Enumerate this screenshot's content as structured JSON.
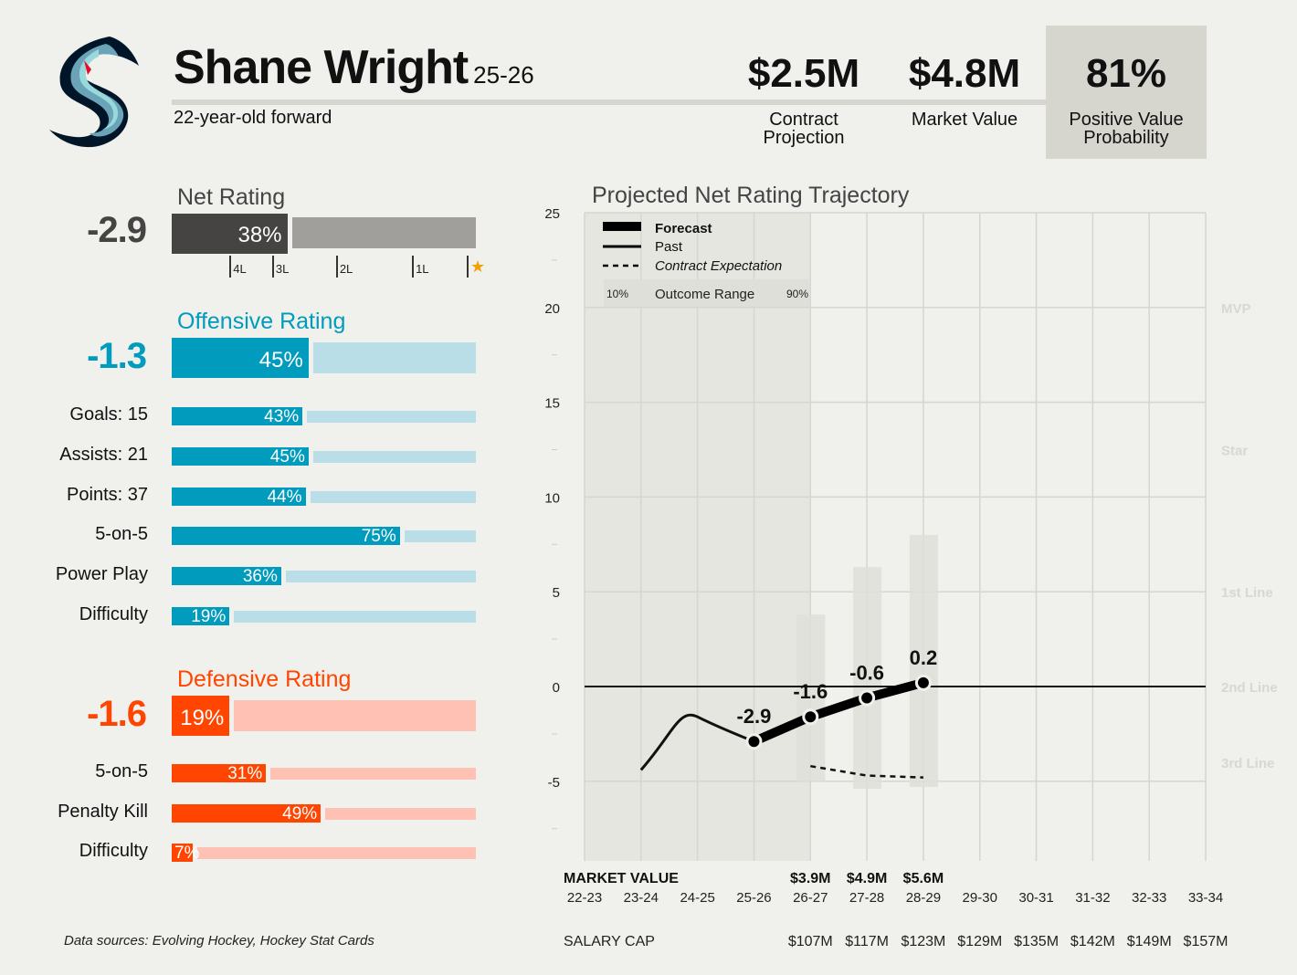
{
  "header": {
    "player_name": "Shane Wright",
    "season": "25-26",
    "subtitle": "22-year-old forward",
    "team_logo": "seattle-kraken-logo"
  },
  "summary_stats": [
    {
      "value": "$2.5M",
      "label_line1": "Contract",
      "label_line2": "Projection"
    },
    {
      "value": "$4.8M",
      "label_line1": "Market Value",
      "label_line2": ""
    },
    {
      "value": "81%",
      "label_line1": "Positive Value",
      "label_line2": "Probability"
    }
  ],
  "net_rating": {
    "title": "Net Rating",
    "value": "-2.9",
    "percentile": 38,
    "percentile_label": "38%",
    "color": "#454442",
    "track_color": "#a09f9c",
    "markers": [
      {
        "label": "4L",
        "percentile": 19
      },
      {
        "label": "3L",
        "percentile": 33
      },
      {
        "label": "2L",
        "percentile": 54
      },
      {
        "label": "1L",
        "percentile": 79
      },
      {
        "label": "★",
        "percentile": 97
      }
    ]
  },
  "offensive": {
    "title": "Offensive Rating",
    "value": "-1.3",
    "percentile": 45,
    "percentile_label": "45%",
    "color": "#009bbd",
    "track_color": "#badee7",
    "rows": [
      {
        "label": "Goals: 15",
        "percentile": 43,
        "percentile_label": "43%"
      },
      {
        "label": "Assists: 21",
        "percentile": 45,
        "percentile_label": "45%"
      },
      {
        "label": "Points: 37",
        "percentile": 44,
        "percentile_label": "44%"
      },
      {
        "label": "5-on-5",
        "percentile": 75,
        "percentile_label": "75%"
      },
      {
        "label": "Power Play",
        "percentile": 36,
        "percentile_label": "36%"
      },
      {
        "label": "Difficulty",
        "percentile": 19,
        "percentile_label": "19%"
      }
    ]
  },
  "defensive": {
    "title": "Defensive Rating",
    "value": "-1.6",
    "percentile": 19,
    "percentile_label": "19%",
    "color": "#ff4500",
    "track_color": "#ffc1b4",
    "rows": [
      {
        "label": "5-on-5",
        "percentile": 31,
        "percentile_label": "31%"
      },
      {
        "label": "Penalty Kill",
        "percentile": 49,
        "percentile_label": "49%"
      },
      {
        "label": "Difficulty",
        "percentile": 7,
        "percentile_label": "7%"
      }
    ]
  },
  "footnote": "Data sources: Evolving Hockey, Hockey Stat Cards",
  "chart_data": {
    "type": "line",
    "title": "Projected Net Rating Trajectory",
    "x": [
      "22-23",
      "23-24",
      "24-25",
      "25-26",
      "26-27",
      "27-28",
      "28-29",
      "29-30",
      "30-31",
      "31-32",
      "32-33",
      "33-34"
    ],
    "ylim": [
      -9.2,
      25
    ],
    "yticks": [
      25,
      20,
      15,
      10,
      5,
      0,
      -5
    ],
    "grid": true,
    "legend_position": "top-left",
    "legend": {
      "forecast": "Forecast",
      "past": "Past",
      "contract": "Contract Expectation",
      "range_low": "10%",
      "range_label": "Outcome Range",
      "range_high": "90%"
    },
    "series": [
      {
        "name": "Past",
        "x": [
          "23-24",
          "24-25",
          "25-26"
        ],
        "values": [
          -4.4,
          -1.6,
          -2.9
        ],
        "smooth": true
      },
      {
        "name": "Forecast",
        "x": [
          "25-26",
          "26-27",
          "27-28",
          "28-29"
        ],
        "values": [
          -2.9,
          -1.6,
          -0.6,
          0.2
        ],
        "labels": [
          "-2.9",
          "-1.6",
          "-0.6",
          "0.2"
        ]
      },
      {
        "name": "Contract Expectation",
        "x": [
          "26-27",
          "27-28",
          "28-29"
        ],
        "values": [
          -4.2,
          -4.7,
          -4.8
        ]
      }
    ],
    "outcome_range": [
      {
        "x": "26-27",
        "low": -5.0,
        "high": 3.8
      },
      {
        "x": "27-28",
        "low": -5.4,
        "high": 6.3
      },
      {
        "x": "28-29",
        "low": -5.3,
        "high": 8.0
      }
    ],
    "past_region": [
      "22-23",
      "26-27"
    ],
    "tier_labels": [
      {
        "label": "MVP",
        "y": 20
      },
      {
        "label": "Star",
        "y": 12.5
      },
      {
        "label": "1st Line",
        "y": 5
      },
      {
        "label": "2nd Line",
        "y": 0
      },
      {
        "label": "3rd Line",
        "y": -4
      }
    ],
    "market_value_label": "MARKET VALUE",
    "market_values": [
      {
        "x": "26-27",
        "label": "$3.9M"
      },
      {
        "x": "27-28",
        "label": "$4.9M"
      },
      {
        "x": "28-29",
        "label": "$5.6M"
      }
    ],
    "salary_cap_label": "SALARY CAP",
    "salary_cap": [
      {
        "x": "26-27",
        "label": "$107M"
      },
      {
        "x": "27-28",
        "label": "$117M"
      },
      {
        "x": "28-29",
        "label": "$123M"
      },
      {
        "x": "29-30",
        "label": "$129M"
      },
      {
        "x": "30-31",
        "label": "$135M"
      },
      {
        "x": "31-32",
        "label": "$142M"
      },
      {
        "x": "32-33",
        "label": "$149M"
      },
      {
        "x": "33-34",
        "label": "$157M"
      }
    ]
  }
}
